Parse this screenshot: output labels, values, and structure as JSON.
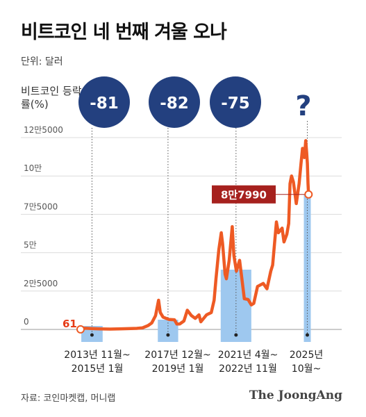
{
  "header": {
    "title": "비트코인 네 번째 겨울 오나",
    "unit": "단위: 달러"
  },
  "footer": {
    "source": "자료: 코인마켓캡, 머니랩",
    "logo": "The JoongAng"
  },
  "colors": {
    "line": "#ee5a24",
    "band": "#9ec8ef",
    "circle": "#23407f",
    "tooltip": "#a6211e",
    "start_label": "#e53b16"
  },
  "chart_data": {
    "type": "line",
    "title": "비트코인 네 번째 겨울 오나",
    "ylabel": "비트코인 등락률(%)",
    "ylim": [
      0,
      125000
    ],
    "yticks": [
      {
        "value": 0,
        "label": "0"
      },
      {
        "value": 25000,
        "label": "2만5000"
      },
      {
        "value": 50000,
        "label": "5만"
      },
      {
        "value": 75000,
        "label": "7만5000"
      },
      {
        "value": 100000,
        "label": "10만"
      },
      {
        "value": 125000,
        "label": "12만5000"
      }
    ],
    "xlim": [
      2013.5,
      2026.0
    ],
    "series": [
      {
        "points": [
          [
            2013.83,
            61
          ],
          [
            2014.0,
            800
          ],
          [
            2014.4,
            600
          ],
          [
            2014.9,
            380
          ],
          [
            2015.4,
            240
          ],
          [
            2016.0,
            430
          ],
          [
            2016.8,
            700
          ],
          [
            2017.1,
            1000
          ],
          [
            2017.4,
            2500
          ],
          [
            2017.6,
            4200
          ],
          [
            2017.8,
            9000
          ],
          [
            2017.96,
            19000
          ],
          [
            2018.05,
            11000
          ],
          [
            2018.2,
            8000
          ],
          [
            2018.5,
            6500
          ],
          [
            2018.8,
            6300
          ],
          [
            2018.93,
            3500
          ],
          [
            2019.08,
            3600
          ],
          [
            2019.3,
            5500
          ],
          [
            2019.48,
            12500
          ],
          [
            2019.7,
            9000
          ],
          [
            2019.9,
            7200
          ],
          [
            2020.1,
            9500
          ],
          [
            2020.2,
            5000
          ],
          [
            2020.5,
            9500
          ],
          [
            2020.75,
            11000
          ],
          [
            2020.9,
            19000
          ],
          [
            2021.0,
            33000
          ],
          [
            2021.15,
            52000
          ],
          [
            2021.28,
            63000
          ],
          [
            2021.35,
            56000
          ],
          [
            2021.48,
            36000
          ],
          [
            2021.55,
            33000
          ],
          [
            2021.7,
            45000
          ],
          [
            2021.86,
            67000
          ],
          [
            2021.95,
            48000
          ],
          [
            2022.08,
            38000
          ],
          [
            2022.25,
            45000
          ],
          [
            2022.4,
            30000
          ],
          [
            2022.5,
            20000
          ],
          [
            2022.7,
            19500
          ],
          [
            2022.87,
            16000
          ],
          [
            2023.0,
            17000
          ],
          [
            2023.2,
            28000
          ],
          [
            2023.5,
            30000
          ],
          [
            2023.7,
            26500
          ],
          [
            2023.9,
            38000
          ],
          [
            2024.0,
            42000
          ],
          [
            2024.2,
            70000
          ],
          [
            2024.3,
            63000
          ],
          [
            2024.5,
            66000
          ],
          [
            2024.6,
            57000
          ],
          [
            2024.75,
            62000
          ],
          [
            2024.85,
            69000
          ],
          [
            2024.92,
            95000
          ],
          [
            2025.0,
            100000
          ],
          [
            2025.1,
            96000
          ],
          [
            2025.25,
            82000
          ],
          [
            2025.4,
            95000
          ],
          [
            2025.5,
            108000
          ],
          [
            2025.58,
            118000
          ],
          [
            2025.68,
            112000
          ],
          [
            2025.75,
            123000
          ],
          [
            2025.8,
            115000
          ],
          [
            2025.84,
            108000
          ],
          [
            2025.87,
            95000
          ],
          [
            2025.9,
            87990
          ]
        ]
      }
    ],
    "periods": [
      {
        "start": 2013.87,
        "end": 2015.0,
        "change": "-81",
        "label_line1": "2013년 11월~",
        "label_line2": "2015년 1월"
      },
      {
        "start": 2017.92,
        "end": 2019.0,
        "change": "-82",
        "label_line1": "2017년 12월~",
        "label_line2": "2019년 1월"
      },
      {
        "start": 2021.25,
        "end": 2022.87,
        "change": "-75",
        "label_line1": "2021년 4월~",
        "label_line2": "2022년 11월"
      },
      {
        "start": 2025.75,
        "end": 2025.92,
        "change": "?",
        "label_line1": "2025년",
        "label_line2": "10월~"
      }
    ],
    "annotations": {
      "start_value": "61",
      "end_value": "8만7990"
    }
  }
}
